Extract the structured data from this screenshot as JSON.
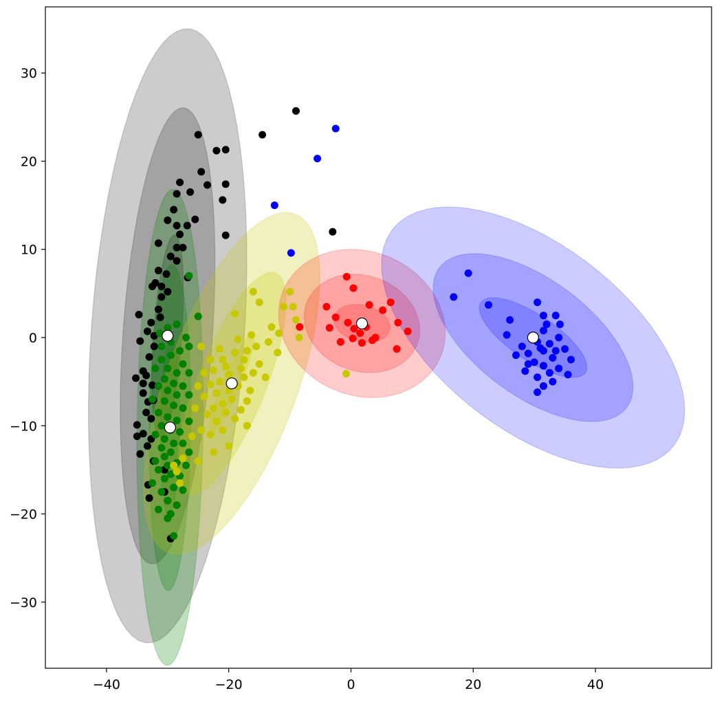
{
  "chart_data": {
    "type": "scatter",
    "title": "",
    "xlabel": "",
    "ylabel": "",
    "xlim": [
      -50,
      59
    ],
    "ylim": [
      -37.5,
      37.5
    ],
    "xticks": [
      -40,
      -20,
      0,
      20,
      40
    ],
    "yticks": [
      -30,
      -20,
      -10,
      0,
      10,
      20,
      30
    ],
    "xtick_labels": [
      "−40",
      "−20",
      "0",
      "20",
      "40"
    ],
    "ytick_labels": [
      "−30",
      "−20",
      "−10",
      "0",
      "10",
      "20",
      "30"
    ],
    "grid": false,
    "legend": "none",
    "clusters": [
      {
        "color": "#000000",
        "center": [
          -30.0,
          0.2
        ],
        "ellipse": {
          "a1": 11.5,
          "a2": 26,
          "a3": 35,
          "b1": 2.3,
          "b2": 7.3,
          "b3": 12.5,
          "angle_deg": 84
        },
        "ellipse_alpha": 0.2,
        "points": [
          [
            -25,
            23
          ],
          [
            -14.5,
            23
          ],
          [
            -9,
            25.7
          ],
          [
            -22,
            21.2
          ],
          [
            -20.5,
            21.3
          ],
          [
            -24.5,
            18.8
          ],
          [
            -28,
            17.6
          ],
          [
            -23.5,
            17.3
          ],
          [
            -20.5,
            17.4
          ],
          [
            -28.5,
            16.3
          ],
          [
            -26.3,
            16.5
          ],
          [
            -21,
            15.6
          ],
          [
            -29,
            14.5
          ],
          [
            -25.5,
            13.4
          ],
          [
            -30,
            13.3
          ],
          [
            -28.5,
            12.7
          ],
          [
            -26.8,
            12.7
          ],
          [
            -28,
            11.7
          ],
          [
            -20.5,
            11.6
          ],
          [
            -31.5,
            10.7
          ],
          [
            -28.5,
            10.2
          ],
          [
            -27.5,
            10.2
          ],
          [
            -29.5,
            9.2
          ],
          [
            -28.5,
            8.7
          ],
          [
            -31.5,
            7.6
          ],
          [
            -30.2,
            7.2
          ],
          [
            -26.7,
            6.8
          ],
          [
            -32,
            6.2
          ],
          [
            -31,
            5.8
          ],
          [
            -32.5,
            5.8
          ],
          [
            -30,
            5.2
          ],
          [
            -31,
            4.6
          ],
          [
            -31.5,
            3.2
          ],
          [
            -34.7,
            2.6
          ],
          [
            -31.2,
            2.3
          ],
          [
            -32.7,
            1.7
          ],
          [
            -33.3,
            0.7
          ],
          [
            -32.2,
            0.2
          ],
          [
            -34.5,
            -0.4
          ],
          [
            -32.2,
            -1
          ],
          [
            -33,
            -2.2
          ],
          [
            -34,
            -3.8
          ],
          [
            -33.5,
            -4.3
          ],
          [
            -35.2,
            -4.6
          ],
          [
            -34,
            -5.2
          ],
          [
            -32.5,
            -5.4
          ],
          [
            -34,
            -6.3
          ],
          [
            -33.2,
            -7.3
          ],
          [
            -32.3,
            -7.1
          ],
          [
            -33.5,
            -8.5
          ],
          [
            -32.7,
            -9.2
          ],
          [
            -35,
            -9.9
          ],
          [
            -34,
            -10.9
          ],
          [
            -32.7,
            -11.5
          ],
          [
            -35,
            -11.2
          ],
          [
            -33.3,
            -12.3
          ],
          [
            -34.5,
            -13.2
          ],
          [
            -32.3,
            -14
          ],
          [
            -30.5,
            -15
          ],
          [
            -33.2,
            -16.7
          ],
          [
            -30.5,
            -17.5
          ],
          [
            -33,
            -18.2
          ],
          [
            -29.5,
            -22.8
          ],
          [
            -3,
            12
          ]
        ]
      },
      {
        "color": "#008000",
        "center": [
          -29.6,
          -10.2
        ],
        "ellipse": {
          "a1": 10,
          "a2": 18.5,
          "a3": 27,
          "b1": 1.6,
          "b2": 3.4,
          "b3": 5.4,
          "angle_deg": 89
        },
        "ellipse_alpha": 0.25,
        "points": [
          [
            -26.5,
            7
          ],
          [
            -25,
            2.4
          ],
          [
            -28.5,
            1.5
          ],
          [
            -30,
            1.1
          ],
          [
            -31.3,
            0.5
          ],
          [
            -27,
            0
          ],
          [
            -29.5,
            -0.5
          ],
          [
            -31,
            -1
          ],
          [
            -26.5,
            -1
          ],
          [
            -28,
            -1.5
          ],
          [
            -29.5,
            -2
          ],
          [
            -31,
            -2.5
          ],
          [
            -27.5,
            -3
          ],
          [
            -30,
            -3.5
          ],
          [
            -32,
            -3.5
          ],
          [
            -28.5,
            -4
          ],
          [
            -26.5,
            -4
          ],
          [
            -30.5,
            -4.7
          ],
          [
            -29,
            -5.2
          ],
          [
            -31.5,
            -5.5
          ],
          [
            -27.5,
            -5.5
          ],
          [
            -30,
            -6
          ],
          [
            -28.5,
            -6.5
          ],
          [
            -26.5,
            -6.5
          ],
          [
            -32.5,
            -7
          ],
          [
            -30.5,
            -7.2
          ],
          [
            -29,
            -7.7
          ],
          [
            -27.5,
            -8
          ],
          [
            -31.5,
            -8.5
          ],
          [
            -30,
            -9
          ],
          [
            -28.5,
            -9.4
          ],
          [
            -26.5,
            -9.5
          ],
          [
            -31,
            -10
          ],
          [
            -29.5,
            -10.5
          ],
          [
            -28,
            -10.7
          ],
          [
            -32,
            -11
          ],
          [
            -30.5,
            -11.5
          ],
          [
            -29,
            -12
          ],
          [
            -27.5,
            -12
          ],
          [
            -31,
            -12.5
          ],
          [
            -29.5,
            -13
          ],
          [
            -26.5,
            -13
          ],
          [
            -30.5,
            -13.5
          ],
          [
            -32,
            -14
          ],
          [
            -28.5,
            -14.2
          ],
          [
            -30,
            -14.5
          ],
          [
            -27,
            -14.5
          ],
          [
            -31.5,
            -15
          ],
          [
            -29.5,
            -15.5
          ],
          [
            -28,
            -15.7
          ],
          [
            -30.5,
            -16
          ],
          [
            -32.5,
            -16.5
          ],
          [
            -29,
            -17
          ],
          [
            -27.5,
            -17.3
          ],
          [
            -31,
            -17.5
          ],
          [
            -30,
            -18.5
          ],
          [
            -28.5,
            -19
          ],
          [
            -31.5,
            -19.5
          ],
          [
            -29.5,
            -20
          ],
          [
            -29,
            -22.5
          ],
          [
            -30,
            -20.5
          ]
        ]
      },
      {
        "color": "#c8c800",
        "center": [
          -19.5,
          -5.2
        ],
        "ellipse": {
          "a1": 6.5,
          "a2": 14.5,
          "a3": 22,
          "b1": 1.3,
          "b2": 5.2,
          "b3": 10,
          "angle_deg": 58
        },
        "ellipse_alpha": 0.25,
        "points": [
          [
            -10,
            5.2
          ],
          [
            -16,
            5.2
          ],
          [
            -15,
            4
          ],
          [
            -11,
            3.5
          ],
          [
            -19,
            2.7
          ],
          [
            -9.5,
            3.5
          ],
          [
            -9,
            2
          ],
          [
            -13,
            1.2
          ],
          [
            -11.8,
            0.5
          ],
          [
            -16.3,
            0.3
          ],
          [
            -8.5,
            0
          ],
          [
            -18.5,
            -0.2
          ],
          [
            -13.5,
            -0.5
          ],
          [
            -15.5,
            -1
          ],
          [
            -21.5,
            -1.3
          ],
          [
            -24.5,
            -1
          ],
          [
            -17,
            -1.5
          ],
          [
            -19,
            -1.7
          ],
          [
            -12,
            -1.7
          ],
          [
            -17.5,
            -2.5
          ],
          [
            -21,
            -2.5
          ],
          [
            -23,
            -2.5
          ],
          [
            -15,
            -3
          ],
          [
            -20.5,
            -3.3
          ],
          [
            -18,
            -3.5
          ],
          [
            -22.5,
            -3.7
          ],
          [
            -24,
            -4
          ],
          [
            -16,
            -4
          ],
          [
            -20,
            -4.2
          ],
          [
            -17.5,
            -4.5
          ],
          [
            -14,
            -4.5
          ],
          [
            -21.5,
            -5
          ],
          [
            -23,
            -5.3
          ],
          [
            -18.5,
            -5.5
          ],
          [
            -25,
            -5.5
          ],
          [
            -20,
            -6
          ],
          [
            -16.5,
            -6
          ],
          [
            -22,
            -6.3
          ],
          [
            -24,
            -6.7
          ],
          [
            -19.5,
            -7
          ],
          [
            -17,
            -7.2
          ],
          [
            -21,
            -7.5
          ],
          [
            -22.5,
            -8
          ],
          [
            -25.5,
            -8
          ],
          [
            -18,
            -8.2
          ],
          [
            -20.5,
            -8.5
          ],
          [
            -23.5,
            -8.7
          ],
          [
            -19,
            -9.2
          ],
          [
            -22,
            -9.5
          ],
          [
            -17,
            -10
          ],
          [
            -24.5,
            -10.5
          ],
          [
            -21,
            -10.5
          ],
          [
            -23,
            -11
          ],
          [
            -26,
            -11.2
          ],
          [
            -20,
            -12.3
          ],
          [
            -22.5,
            -13
          ],
          [
            -27.5,
            -13.7
          ],
          [
            -25,
            -14
          ],
          [
            -29,
            -14.5
          ],
          [
            -28.5,
            -15.2
          ],
          [
            -28,
            -16.5
          ],
          [
            -0.8,
            -4.1
          ]
        ]
      },
      {
        "color": "#ff0000",
        "center": [
          1.8,
          1.6
        ],
        "ellipse": {
          "a1": 4.6,
          "a2": 9.5,
          "a3": 13.7,
          "b1": 2.1,
          "b2": 5.5,
          "b3": 8.3,
          "angle_deg": -7
        },
        "ellipse_alpha": 0.2,
        "points": [
          [
            -0.7,
            6.9
          ],
          [
            0.4,
            5.6
          ],
          [
            6.5,
            4
          ],
          [
            -4,
            3.5
          ],
          [
            3,
            3.7
          ],
          [
            5.2,
            3.1
          ],
          [
            -2.5,
            2.3
          ],
          [
            -0.5,
            1.7
          ],
          [
            0.5,
            1
          ],
          [
            7.7,
            1.7
          ],
          [
            2.5,
            1.2
          ],
          [
            1.5,
            0.5
          ],
          [
            -3.5,
            1.1
          ],
          [
            -8.4,
            1.2
          ],
          [
            4,
            0
          ],
          [
            9.3,
            0.7
          ],
          [
            3.5,
            -0.3
          ],
          [
            -1.7,
            -0.5
          ],
          [
            0.3,
            -0.1
          ],
          [
            1.8,
            -0.6
          ],
          [
            7.5,
            -1.3
          ]
        ]
      },
      {
        "color": "#0000ff",
        "center": [
          29.8,
          0.0
        ],
        "ellipse": {
          "a1": 9.5,
          "a2": 17.5,
          "a3": 26.5,
          "b1": 2.8,
          "b2": 7.2,
          "b3": 11.5,
          "angle_deg": -23
        },
        "ellipse_alpha": 0.2,
        "points": [
          [
            -2.5,
            23.7
          ],
          [
            -5.5,
            20.3
          ],
          [
            -12.5,
            15
          ],
          [
            -9.8,
            9.6
          ],
          [
            19.2,
            7.3
          ],
          [
            16.8,
            4.6
          ],
          [
            22.5,
            3.7
          ],
          [
            30.5,
            4
          ],
          [
            26,
            2
          ],
          [
            32,
            1.5
          ],
          [
            33.5,
            2.5
          ],
          [
            31.5,
            0.8
          ],
          [
            25.5,
            0.3
          ],
          [
            34,
            0
          ],
          [
            30.5,
            -0.5
          ],
          [
            32.5,
            -0.7
          ],
          [
            28,
            -1
          ],
          [
            35,
            -1.3
          ],
          [
            31.5,
            -1.5
          ],
          [
            29,
            -1.8
          ],
          [
            27,
            -2
          ],
          [
            33,
            -2.3
          ],
          [
            36,
            -2.5
          ],
          [
            30,
            -2.8
          ],
          [
            31.5,
            -3.2
          ],
          [
            34,
            -3.5
          ],
          [
            28.5,
            -3.8
          ],
          [
            32.5,
            -4
          ],
          [
            35.5,
            -4.2
          ],
          [
            30.5,
            -4.5
          ],
          [
            33,
            -5
          ],
          [
            31.5,
            -5.5
          ],
          [
            30.5,
            -6.2
          ],
          [
            29,
            -3
          ],
          [
            31.5,
            2.5
          ],
          [
            34.2,
            1.5
          ],
          [
            33.5,
            -1.5
          ],
          [
            31,
            -1.2
          ]
        ]
      }
    ]
  }
}
